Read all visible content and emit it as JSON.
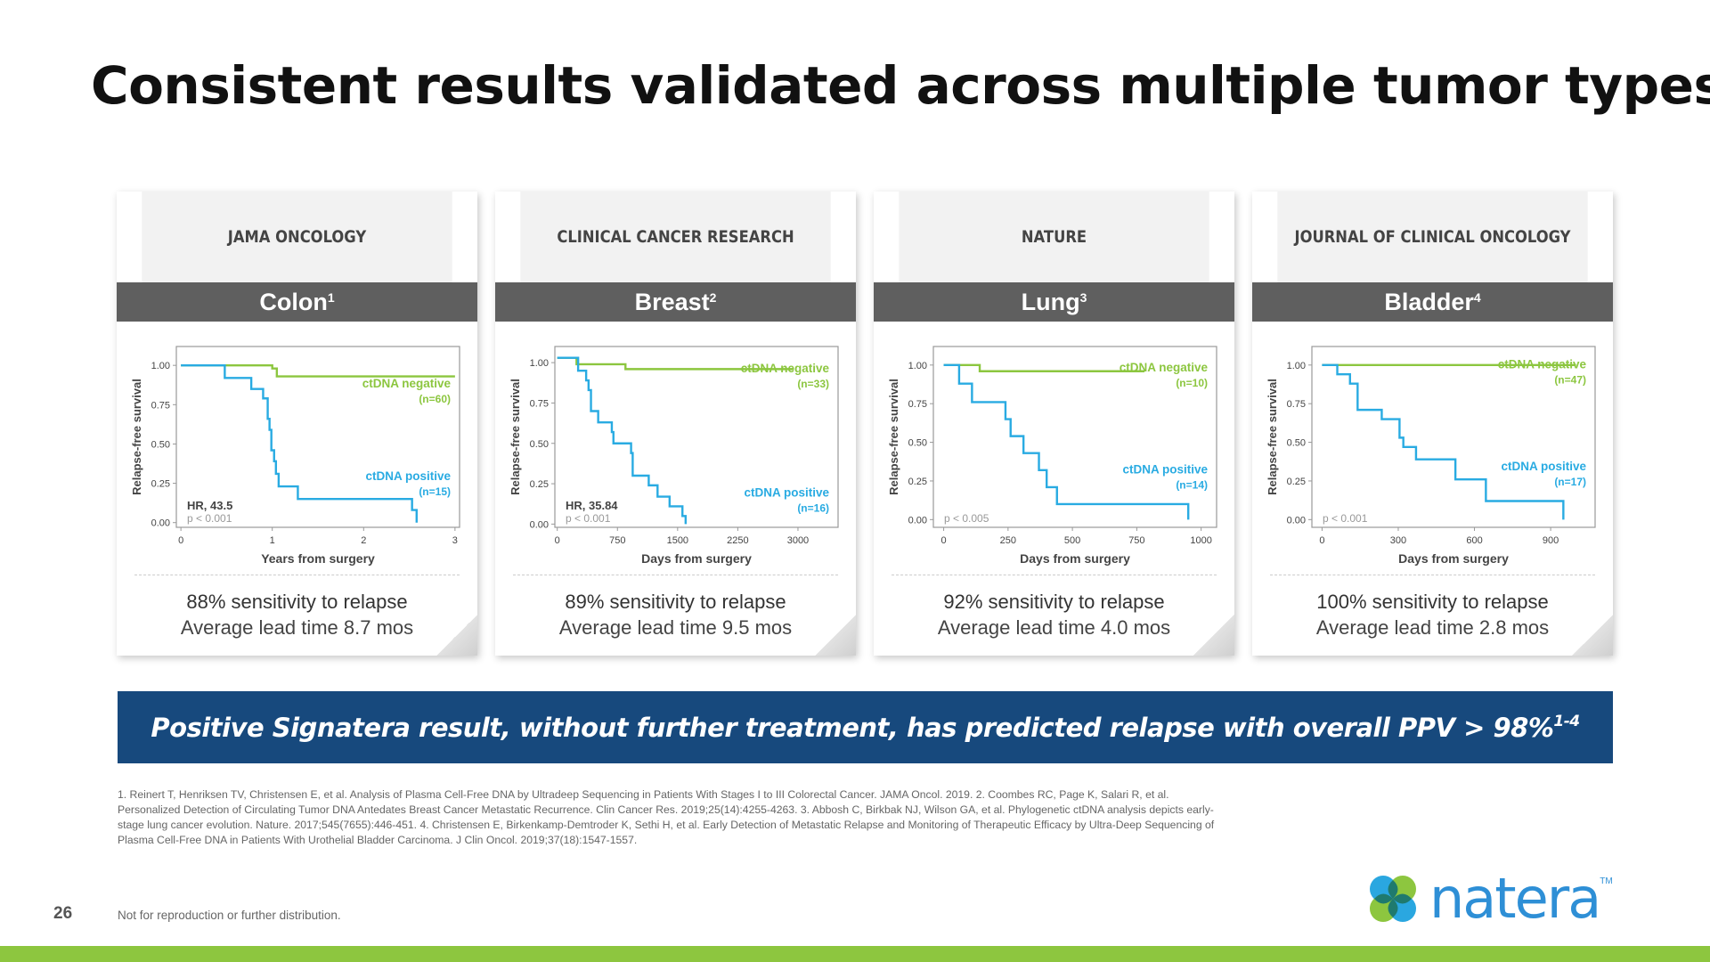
{
  "title": "Consistent results validated across multiple tumor types",
  "cards": [
    {
      "journal": "JAMA ONCOLOGY",
      "tumor": "Colon",
      "ref": "1",
      "sensitivity": "88% sensitivity to relapse",
      "lead_time": "Average lead time 8.7 mos"
    },
    {
      "journal": "CLINICAL CANCER RESEARCH",
      "tumor": "Breast",
      "ref": "2",
      "sensitivity": "89% sensitivity to relapse",
      "lead_time": "Average lead time 9.5 mos"
    },
    {
      "journal": "NATURE",
      "tumor": "Lung",
      "ref": "3",
      "sensitivity": "92% sensitivity to relapse",
      "lead_time": "Average lead time 4.0 mos"
    },
    {
      "journal": "JOURNAL OF CLINICAL ONCOLOGY",
      "tumor": "Bladder",
      "ref": "4",
      "sensitivity": "100% sensitivity to relapse",
      "lead_time": "Average lead time 2.8 mos"
    }
  ],
  "chart_data": [
    {
      "type": "line",
      "ylabel": "Relapse-free survival",
      "xlabel": "Years from surgery",
      "xticks": [
        "0",
        "1",
        "2",
        "3"
      ],
      "xtick_values": [
        0,
        1,
        2,
        3
      ],
      "xlim": [
        -0.05,
        3.05
      ],
      "yticks": [
        "0.00",
        "0.25",
        "0.50",
        "0.75",
        "1.00"
      ],
      "ylim": [
        -0.03,
        1.12
      ],
      "hr": "HR, 43.5",
      "p": "p < 0.001",
      "series": [
        {
          "name": "ctDNA negative",
          "n": "(n=60)",
          "color": "#8cc63f",
          "points": [
            [
              0,
              1
            ],
            [
              1.0,
              1
            ],
            [
              1.0,
              0.98
            ],
            [
              1.05,
              0.98
            ],
            [
              1.05,
              0.93
            ],
            [
              3.0,
              0.93
            ]
          ]
        },
        {
          "name": "ctDNA positive",
          "n": "(n=15)",
          "color": "#29abe2",
          "points": [
            [
              0,
              1
            ],
            [
              0.48,
              1
            ],
            [
              0.48,
              0.92
            ],
            [
              0.77,
              0.92
            ],
            [
              0.77,
              0.85
            ],
            [
              0.9,
              0.85
            ],
            [
              0.9,
              0.79
            ],
            [
              0.95,
              0.79
            ],
            [
              0.95,
              0.66
            ],
            [
              0.97,
              0.66
            ],
            [
              0.97,
              0.59
            ],
            [
              0.99,
              0.59
            ],
            [
              0.99,
              0.46
            ],
            [
              1.02,
              0.46
            ],
            [
              1.02,
              0.39
            ],
            [
              1.04,
              0.39
            ],
            [
              1.04,
              0.31
            ],
            [
              1.07,
              0.31
            ],
            [
              1.07,
              0.23
            ],
            [
              1.28,
              0.23
            ],
            [
              1.28,
              0.15
            ],
            [
              2.53,
              0.15
            ],
            [
              2.53,
              0.08
            ],
            [
              2.58,
              0.08
            ],
            [
              2.58,
              0.0
            ]
          ]
        }
      ]
    },
    {
      "type": "line",
      "ylabel": "Relapse-free survival",
      "xlabel": "Days from surgery",
      "xticks": [
        "0",
        "750",
        "1500",
        "2250",
        "3000"
      ],
      "xtick_values": [
        0,
        750,
        1500,
        2250,
        3000
      ],
      "xlim": [
        -30,
        3500
      ],
      "yticks": [
        "0.00",
        "0.25",
        "0.50",
        "0.75",
        "1.00"
      ],
      "ylim": [
        -0.02,
        1.1
      ],
      "hr": "HR, 35.84",
      "p": "p < 0.001",
      "series": [
        {
          "name": "ctDNA negative",
          "n": "(n=33)",
          "color": "#8cc63f",
          "points": [
            [
              0,
              1.03
            ],
            [
              240,
              1.03
            ],
            [
              240,
              0.99
            ],
            [
              850,
              0.99
            ],
            [
              850,
              0.96
            ],
            [
              2950,
              0.96
            ]
          ]
        },
        {
          "name": "ctDNA positive",
          "n": "(n=16)",
          "color": "#29abe2",
          "points": [
            [
              0,
              1.03
            ],
            [
              260,
              1.03
            ],
            [
              260,
              0.95
            ],
            [
              360,
              0.95
            ],
            [
              360,
              0.89
            ],
            [
              390,
              0.89
            ],
            [
              390,
              0.83
            ],
            [
              420,
              0.83
            ],
            [
              420,
              0.7
            ],
            [
              510,
              0.7
            ],
            [
              510,
              0.63
            ],
            [
              680,
              0.63
            ],
            [
              680,
              0.57
            ],
            [
              700,
              0.57
            ],
            [
              700,
              0.5
            ],
            [
              920,
              0.5
            ],
            [
              920,
              0.44
            ],
            [
              940,
              0.44
            ],
            [
              940,
              0.3
            ],
            [
              1140,
              0.3
            ],
            [
              1140,
              0.24
            ],
            [
              1250,
              0.24
            ],
            [
              1250,
              0.17
            ],
            [
              1400,
              0.17
            ],
            [
              1400,
              0.11
            ],
            [
              1560,
              0.11
            ],
            [
              1560,
              0.05
            ],
            [
              1600,
              0.05
            ],
            [
              1600,
              0.0
            ]
          ]
        }
      ]
    },
    {
      "type": "line",
      "ylabel": "Relapse-free survival",
      "xlabel": "Days from surgery",
      "xticks": [
        "0",
        "250",
        "500",
        "750",
        "1000"
      ],
      "xtick_values": [
        0,
        250,
        500,
        750,
        1000
      ],
      "xlim": [
        -40,
        1060
      ],
      "yticks": [
        "0.00",
        "0.25",
        "0.50",
        "0.75",
        "1.00"
      ],
      "ylim": [
        -0.05,
        1.12
      ],
      "hr": "",
      "p": "p < 0.005",
      "series": [
        {
          "name": "ctDNA negative",
          "n": "(n=10)",
          "color": "#8cc63f",
          "points": [
            [
              0,
              1
            ],
            [
              140,
              1
            ],
            [
              140,
              0.96
            ],
            [
              780,
              0.96
            ]
          ]
        },
        {
          "name": "ctDNA positive",
          "n": "(n=14)",
          "color": "#29abe2",
          "points": [
            [
              0,
              1
            ],
            [
              60,
              1
            ],
            [
              60,
              0.88
            ],
            [
              110,
              0.88
            ],
            [
              110,
              0.76
            ],
            [
              240,
              0.76
            ],
            [
              240,
              0.65
            ],
            [
              260,
              0.65
            ],
            [
              260,
              0.54
            ],
            [
              310,
              0.54
            ],
            [
              310,
              0.43
            ],
            [
              370,
              0.43
            ],
            [
              370,
              0.32
            ],
            [
              400,
              0.32
            ],
            [
              400,
              0.21
            ],
            [
              440,
              0.21
            ],
            [
              440,
              0.1
            ],
            [
              950,
              0.1
            ],
            [
              950,
              0.0
            ]
          ]
        }
      ]
    },
    {
      "type": "line",
      "ylabel": "Relapse-free survival",
      "xlabel": "Days from surgery",
      "xticks": [
        "0",
        "300",
        "600",
        "900"
      ],
      "xtick_values": [
        0,
        300,
        600,
        900
      ],
      "xlim": [
        -40,
        1075
      ],
      "yticks": [
        "0.00",
        "0.25",
        "0.50",
        "0.75",
        "1.00"
      ],
      "ylim": [
        -0.05,
        1.12
      ],
      "hr": "",
      "p": "p < 0.001",
      "series": [
        {
          "name": "ctDNA negative",
          "n": "(n=47)",
          "color": "#8cc63f",
          "points": [
            [
              0,
              1
            ],
            [
              1000,
              1
            ]
          ]
        },
        {
          "name": "ctDNA positive",
          "n": "(n=17)",
          "color": "#29abe2",
          "points": [
            [
              0,
              1
            ],
            [
              60,
              1
            ],
            [
              60,
              0.94
            ],
            [
              110,
              0.94
            ],
            [
              110,
              0.88
            ],
            [
              140,
              0.88
            ],
            [
              140,
              0.71
            ],
            [
              235,
              0.71
            ],
            [
              235,
              0.65
            ],
            [
              305,
              0.65
            ],
            [
              305,
              0.53
            ],
            [
              320,
              0.53
            ],
            [
              320,
              0.47
            ],
            [
              370,
              0.47
            ],
            [
              370,
              0.39
            ],
            [
              525,
              0.39
            ],
            [
              525,
              0.26
            ],
            [
              645,
              0.26
            ],
            [
              645,
              0.12
            ],
            [
              950,
              0.12
            ],
            [
              950,
              0.0
            ]
          ]
        }
      ]
    }
  ],
  "banner": {
    "text": "Positive Signatera result, without further treatment, has predicted relapse with overall PPV > 98%",
    "sup": "1-4"
  },
  "references": "1. Reinert T, Henriksen TV, Christensen E, et al. Analysis of Plasma Cell-Free DNA by Ultradeep Sequencing in Patients With Stages I to III Colorectal Cancer. JAMA Oncol. 2019. 2. Coombes RC, Page K, Salari R, et al. Personalized Detection of Circulating Tumor DNA Antedates Breast Cancer Metastatic Recurrence. Clin Cancer Res. 2019;25(14):4255-4263. 3. Abbosh C, Birkbak NJ, Wilson GA, et al. Phylogenetic ctDNA analysis depicts early-stage lung cancer evolution. Nature. 2017;545(7655):446-451. 4. Christensen E, Birkenkamp-Demtroder K, Sethi H, et al. Early Detection of Metastatic Relapse and Monitoring of Therapeutic Efficacy by Ultra-Deep Sequencing of Plasma Cell-Free DNA in Patients With Urothelial Bladder Carcinoma. J Clin Oncol. 2019;37(18):1547-1557.",
  "page_number": "26",
  "disclaimer": "Not for reproduction or further distribution.",
  "logo": {
    "text": "natera",
    "tm": "TM",
    "colors": {
      "blue": "#2e8fd6",
      "green": "#8dc63f",
      "teal": "#1f7a6e"
    }
  },
  "colors": {
    "banner": "#17497d",
    "bottom_bar": "#8dc63f",
    "negative": "#8cc63f",
    "positive": "#29abe2"
  }
}
